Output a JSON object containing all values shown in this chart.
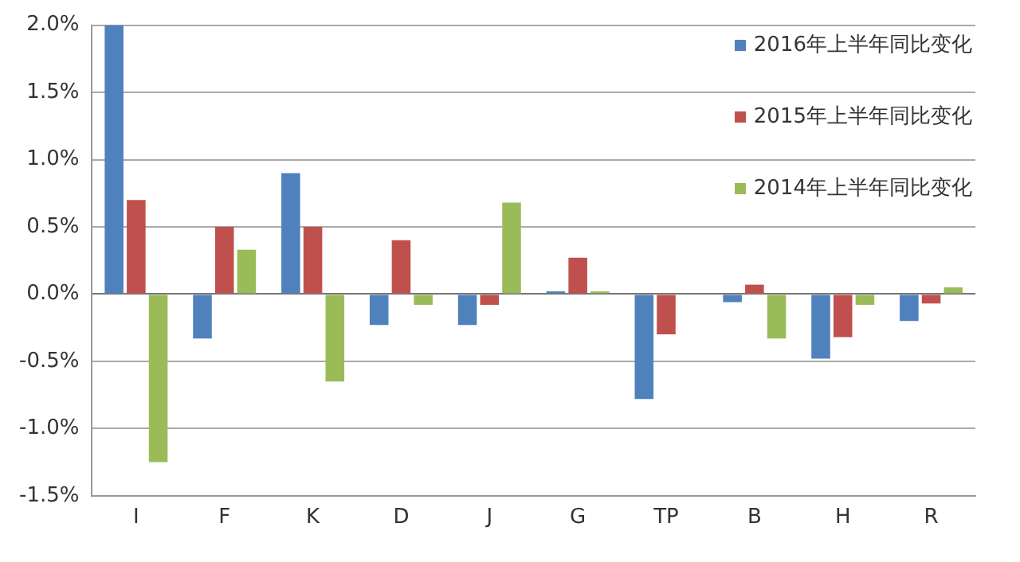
{
  "chart_data": {
    "type": "bar",
    "categories": [
      "I",
      "F",
      "K",
      "D",
      "J",
      "G",
      "TP",
      "B",
      "H",
      "R"
    ],
    "series": [
      {
        "name": "2016年上半年同比变化",
        "color": "#4f81bd",
        "values": [
          2.0,
          -0.33,
          0.9,
          -0.23,
          -0.23,
          0.02,
          -0.78,
          -0.06,
          -0.48,
          -0.2
        ]
      },
      {
        "name": "2015年上半年同比变化",
        "color": "#c0504d",
        "values": [
          0.7,
          0.5,
          0.5,
          0.4,
          -0.08,
          0.27,
          -0.3,
          0.07,
          -0.32,
          -0.07
        ]
      },
      {
        "name": "2014年上半年同比变化",
        "color": "#9bbb59",
        "values": [
          -1.25,
          0.33,
          -0.65,
          -0.08,
          0.68,
          0.02,
          0,
          -0.33,
          -0.08,
          0.05
        ]
      }
    ],
    "ylim": [
      -1.5,
      2.0
    ],
    "yticks": [
      {
        "value": -1.5,
        "label": "-1.5%"
      },
      {
        "value": -1.0,
        "label": "-1.0%"
      },
      {
        "value": -0.5,
        "label": "-0.5%"
      },
      {
        "value": 0,
        "label": "0.0%"
      },
      {
        "value": 0.5,
        "label": "0.5%"
      },
      {
        "value": 1.0,
        "label": "1.0%"
      },
      {
        "value": 1.5,
        "label": "1.5%"
      },
      {
        "value": 2.0,
        "label": "2.0%"
      }
    ],
    "grid": "y",
    "legend": "top right"
  }
}
